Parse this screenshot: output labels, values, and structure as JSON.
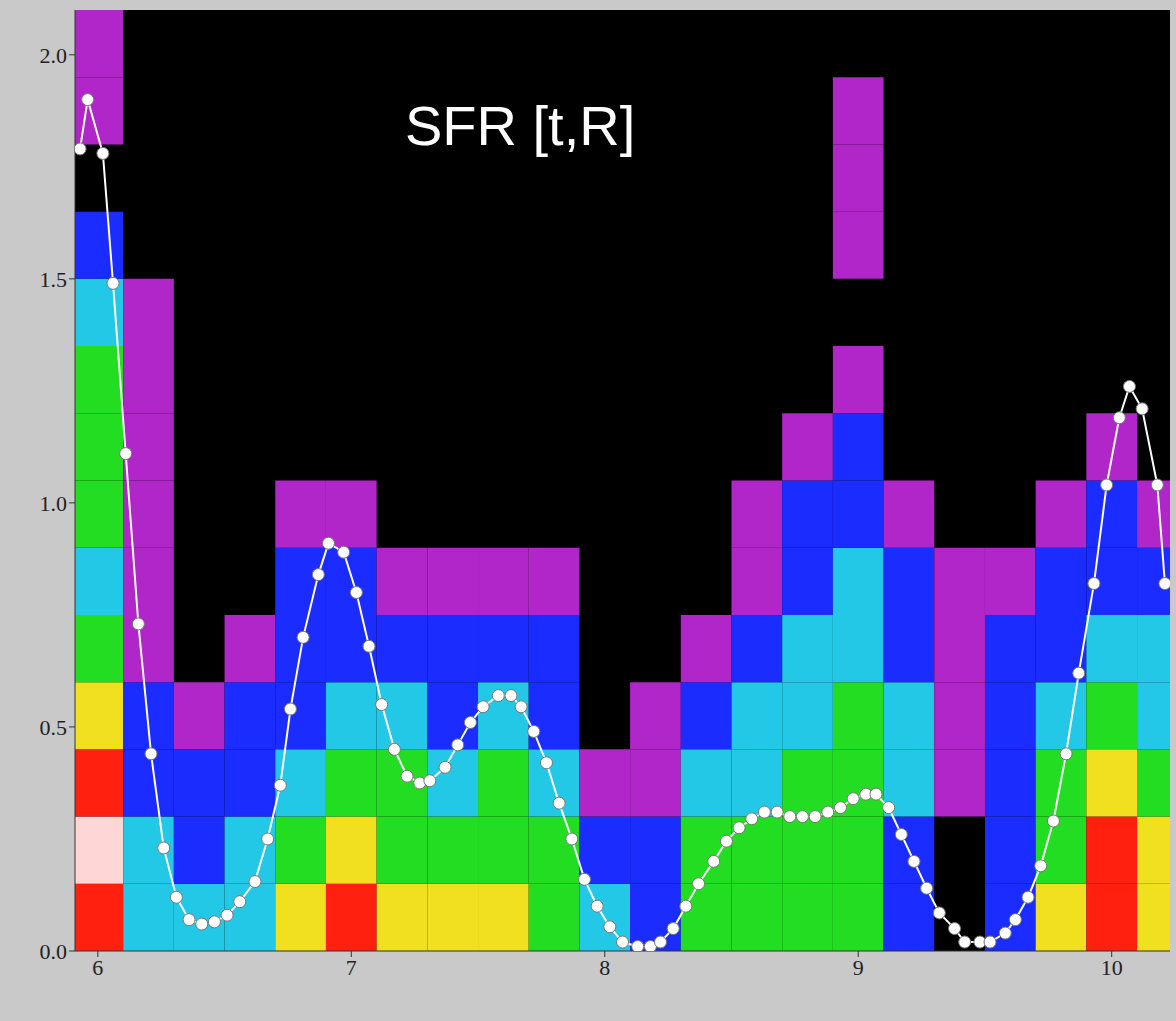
{
  "chart_data": {
    "type": "line",
    "title": "SFR [t,R]",
    "xlim": [
      5.91,
      10.23
    ],
    "ylim": [
      0,
      2.1
    ],
    "xticks": [
      6,
      7,
      8,
      9,
      10
    ],
    "yticks": [
      {
        "value": 0,
        "label": "0.0"
      },
      0.5,
      {
        "value": 1,
        "label": "1.0"
      },
      1.5,
      {
        "value": 2,
        "label": "2.0"
      }
    ],
    "grid": false,
    "color": "#ffffff",
    "marker": "circle",
    "line_style": "solid",
    "x": [
      5.93,
      5.96,
      6.02,
      6.06,
      6.11,
      6.16,
      6.21,
      6.26,
      6.31,
      6.36,
      6.41,
      6.46,
      6.51,
      6.56,
      6.62,
      6.67,
      6.72,
      6.76,
      6.81,
      6.87,
      6.91,
      6.97,
      7.02,
      7.07,
      7.12,
      7.17,
      7.22,
      7.27,
      7.31,
      7.37,
      7.42,
      7.47,
      7.52,
      7.58,
      7.63,
      7.67,
      7.72,
      7.77,
      7.82,
      7.87,
      7.92,
      7.97,
      8.02,
      8.07,
      8.13,
      8.18,
      8.22,
      8.27,
      8.32,
      8.37,
      8.43,
      8.48,
      8.53,
      8.58,
      8.63,
      8.68,
      8.73,
      8.78,
      8.83,
      8.88,
      8.93,
      8.98,
      9.03,
      9.07,
      9.12,
      9.17,
      9.22,
      9.27,
      9.32,
      9.38,
      9.42,
      9.48,
      9.52,
      9.58,
      9.62,
      9.67,
      9.72,
      9.77,
      9.82,
      9.87,
      9.93,
      9.98,
      10.03,
      10.07,
      10.12,
      10.18,
      10.21
    ],
    "values": [
      1.79,
      1.9,
      1.78,
      1.49,
      1.11,
      0.73,
      0.44,
      0.23,
      0.12,
      0.07,
      0.06,
      0.065,
      0.08,
      0.11,
      0.155,
      0.25,
      0.37,
      0.54,
      0.7,
      0.84,
      0.91,
      0.89,
      0.8,
      0.68,
      0.55,
      0.45,
      0.39,
      0.375,
      0.38,
      0.41,
      0.46,
      0.51,
      0.545,
      0.57,
      0.57,
      0.545,
      0.49,
      0.42,
      0.33,
      0.25,
      0.16,
      0.1,
      0.054,
      0.02,
      0.01,
      0.01,
      0.02,
      0.05,
      0.1,
      0.15,
      0.2,
      0.245,
      0.275,
      0.295,
      0.31,
      0.31,
      0.3,
      0.3,
      0.3,
      0.31,
      0.32,
      0.34,
      0.35,
      0.35,
      0.32,
      0.26,
      0.2,
      0.14,
      0.085,
      0.05,
      0.02,
      0.02,
      0.02,
      0.04,
      0.07,
      0.12,
      0.19,
      0.29,
      0.44,
      0.62,
      0.82,
      1.04,
      1.19,
      1.26,
      1.21,
      1.04,
      0.82
    ],
    "heatmap": {
      "x_edges": [
        5.9,
        6.1,
        6.3,
        6.5,
        6.7,
        6.9,
        7.1,
        7.3,
        7.5,
        7.7,
        7.9,
        8.1,
        8.3,
        8.5,
        8.7,
        8.9,
        9.1,
        9.3,
        9.5,
        9.7,
        9.9,
        10.1,
        10.3
      ],
      "y_edges": [
        0,
        0.15,
        0.3,
        0.45,
        0.6,
        0.75,
        0.9,
        1.05,
        1.2,
        1.35,
        1.5,
        1.65,
        1.8,
        1.95,
        2.1
      ],
      "cells": [
        [
          6,
          7,
          6,
          5,
          4,
          3,
          4,
          4,
          4,
          3,
          2,
          0,
          1,
          1
        ],
        [
          3,
          3,
          2,
          2,
          1,
          1,
          1,
          1,
          1,
          1,
          0,
          0,
          0,
          0
        ],
        [
          3,
          2,
          2,
          1,
          0,
          0,
          0,
          0,
          0,
          0,
          0,
          0,
          0,
          0
        ],
        [
          3,
          3,
          2,
          2,
          1,
          0,
          0,
          0,
          0,
          0,
          0,
          0,
          0,
          0
        ],
        [
          5,
          4,
          3,
          2,
          2,
          2,
          1,
          0,
          0,
          0,
          0,
          0,
          0,
          0
        ],
        [
          6,
          5,
          4,
          3,
          2,
          2,
          1,
          0,
          0,
          0,
          0,
          0,
          0,
          0
        ],
        [
          5,
          4,
          4,
          3,
          2,
          1,
          0,
          0,
          0,
          0,
          0,
          0,
          0,
          0
        ],
        [
          5,
          4,
          3,
          2,
          2,
          1,
          0,
          0,
          0,
          0,
          0,
          0,
          0,
          0
        ],
        [
          5,
          4,
          4,
          3,
          2,
          1,
          0,
          0,
          0,
          0,
          0,
          0,
          0,
          0
        ],
        [
          4,
          4,
          3,
          2,
          2,
          1,
          0,
          0,
          0,
          0,
          0,
          0,
          0,
          0
        ],
        [
          3,
          2,
          1,
          0,
          0,
          0,
          0,
          0,
          0,
          0,
          0,
          0,
          0,
          0
        ],
        [
          2,
          2,
          1,
          1,
          0,
          0,
          0,
          0,
          0,
          0,
          0,
          0,
          0,
          0
        ],
        [
          4,
          4,
          3,
          2,
          1,
          0,
          0,
          0,
          0,
          0,
          0,
          0,
          0,
          0
        ],
        [
          4,
          4,
          3,
          3,
          2,
          1,
          1,
          0,
          0,
          0,
          0,
          0,
          0,
          0
        ],
        [
          4,
          4,
          4,
          3,
          3,
          2,
          2,
          1,
          0,
          0,
          0,
          0,
          0,
          0
        ],
        [
          4,
          4,
          4,
          4,
          3,
          3,
          2,
          2,
          1,
          0,
          1,
          1,
          1,
          0
        ],
        [
          2,
          2,
          3,
          3,
          2,
          2,
          1,
          0,
          0,
          0,
          0,
          0,
          0,
          0
        ],
        [
          0,
          0,
          1,
          1,
          1,
          1,
          0,
          0,
          0,
          0,
          0,
          0,
          0,
          0
        ],
        [
          2,
          2,
          2,
          2,
          2,
          1,
          0,
          0,
          0,
          0,
          0,
          0,
          0,
          0
        ],
        [
          5,
          4,
          4,
          3,
          2,
          2,
          1,
          0,
          0,
          0,
          0,
          0,
          0,
          0
        ],
        [
          6,
          6,
          5,
          4,
          3,
          2,
          2,
          1,
          0,
          0,
          0,
          0,
          0,
          0
        ],
        [
          5,
          5,
          4,
          3,
          3,
          2,
          1,
          0,
          0,
          0,
          0,
          0,
          0,
          0
        ]
      ]
    }
  }
}
